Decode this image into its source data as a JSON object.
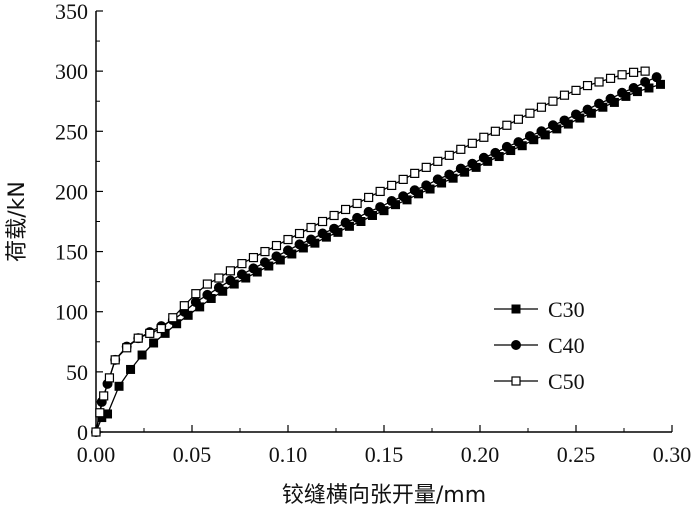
{
  "chart_data": {
    "type": "line",
    "title": "",
    "xlabel": "铰缝横向张开量/mm",
    "ylabel": "荷载/kN",
    "xlim": [
      0.0,
      0.3
    ],
    "ylim": [
      0,
      350
    ],
    "xticks": [
      "0.00",
      "0.05",
      "0.10",
      "0.15",
      "0.20",
      "0.25",
      "0.30"
    ],
    "yticks": [
      "0",
      "50",
      "100",
      "150",
      "200",
      "250",
      "300",
      "350"
    ],
    "grid": false,
    "legend_position": "center-right",
    "series": [
      {
        "name": "C30",
        "marker": "filled-square",
        "color": "#000000",
        "x": [
          0,
          0.003,
          0.006,
          0.012,
          0.018,
          0.024,
          0.03,
          0.036,
          0.042,
          0.048,
          0.054,
          0.06,
          0.066,
          0.072,
          0.078,
          0.084,
          0.09,
          0.096,
          0.102,
          0.108,
          0.114,
          0.12,
          0.126,
          0.132,
          0.138,
          0.144,
          0.15,
          0.156,
          0.162,
          0.168,
          0.174,
          0.18,
          0.186,
          0.192,
          0.198,
          0.204,
          0.21,
          0.216,
          0.222,
          0.228,
          0.234,
          0.24,
          0.246,
          0.252,
          0.258,
          0.264,
          0.27,
          0.276,
          0.282,
          0.288,
          0.294
        ],
        "y": [
          0,
          12,
          15,
          38,
          52,
          64,
          74,
          82,
          90,
          97,
          104,
          111,
          117,
          123,
          128,
          133,
          138,
          143,
          148,
          153,
          157,
          162,
          166,
          171,
          175,
          180,
          184,
          189,
          193,
          198,
          202,
          207,
          211,
          216,
          220,
          225,
          229,
          234,
          238,
          243,
          247,
          252,
          256,
          261,
          265,
          270,
          274,
          279,
          283,
          286,
          289
        ]
      },
      {
        "name": "C40",
        "marker": "filled-circle",
        "color": "#000000",
        "x": [
          0,
          0.003,
          0.006,
          0.01,
          0.016,
          0.022,
          0.028,
          0.034,
          0.04,
          0.046,
          0.052,
          0.058,
          0.064,
          0.07,
          0.076,
          0.082,
          0.088,
          0.094,
          0.1,
          0.106,
          0.112,
          0.118,
          0.124,
          0.13,
          0.136,
          0.142,
          0.148,
          0.154,
          0.16,
          0.166,
          0.172,
          0.178,
          0.184,
          0.19,
          0.196,
          0.202,
          0.208,
          0.214,
          0.22,
          0.226,
          0.232,
          0.238,
          0.244,
          0.25,
          0.256,
          0.262,
          0.268,
          0.274,
          0.28,
          0.286,
          0.292
        ],
        "y": [
          0,
          25,
          40,
          60,
          71,
          78,
          83,
          88,
          93,
          100,
          108,
          114,
          120,
          126,
          131,
          136,
          141,
          146,
          151,
          156,
          160,
          165,
          169,
          174,
          178,
          183,
          187,
          192,
          196,
          201,
          205,
          210,
          214,
          219,
          223,
          228,
          232,
          237,
          241,
          246,
          250,
          255,
          259,
          264,
          268,
          273,
          277,
          282,
          286,
          291,
          295
        ]
      },
      {
        "name": "C50",
        "marker": "open-square",
        "color": "#000000",
        "x": [
          0,
          0.002,
          0.004,
          0.007,
          0.01,
          0.016,
          0.022,
          0.028,
          0.034,
          0.04,
          0.046,
          0.052,
          0.058,
          0.064,
          0.07,
          0.076,
          0.082,
          0.088,
          0.094,
          0.1,
          0.106,
          0.112,
          0.118,
          0.124,
          0.13,
          0.136,
          0.142,
          0.148,
          0.154,
          0.16,
          0.166,
          0.172,
          0.178,
          0.184,
          0.19,
          0.196,
          0.202,
          0.208,
          0.214,
          0.22,
          0.226,
          0.232,
          0.238,
          0.244,
          0.25,
          0.256,
          0.262,
          0.268,
          0.274,
          0.28,
          0.286
        ],
        "y": [
          0,
          16,
          30,
          45,
          60,
          70,
          78,
          82,
          86,
          95,
          105,
          115,
          123,
          128,
          134,
          140,
          145,
          150,
          155,
          160,
          165,
          170,
          175,
          180,
          185,
          190,
          195,
          200,
          205,
          210,
          215,
          220,
          225,
          230,
          235,
          240,
          245,
          250,
          255,
          260,
          265,
          270,
          275,
          280,
          284,
          288,
          291,
          294,
          297,
          299,
          300
        ]
      }
    ]
  }
}
